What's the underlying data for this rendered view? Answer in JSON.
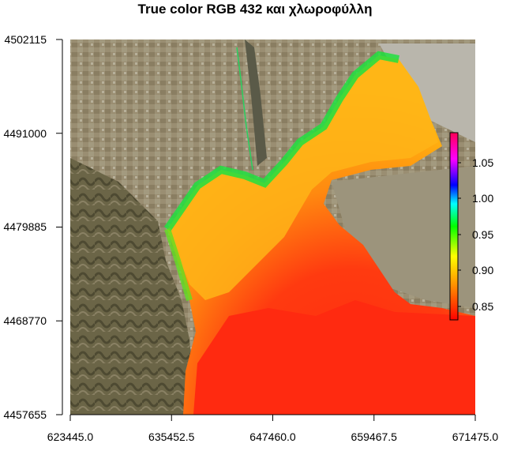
{
  "title": "True color RGB 432 και χλωροφύλλη",
  "map": {
    "x_ticks": [
      "623445.0",
      "635452.5",
      "647460.0",
      "659467.5",
      "671475.0"
    ],
    "y_ticks": [
      "4502115",
      "4491000",
      "4479885",
      "4468770",
      "4457655"
    ],
    "x_range": [
      623445.0,
      671475.0
    ],
    "y_range": [
      4457655,
      4502115
    ]
  },
  "colorbar": {
    "labels": [
      "1.05",
      "1.00",
      "0.95",
      "0.90",
      "0.85"
    ],
    "values": [
      1.05,
      1.0,
      0.95,
      0.9,
      0.85
    ],
    "range": [
      0.83,
      1.09
    ],
    "colors": [
      "#ff0000",
      "#ff8c00",
      "#ffff00",
      "#00ff00",
      "#00ffff",
      "#0000ff",
      "#ff00ff",
      "#ff0066"
    ]
  },
  "colors": {
    "land": "#8e8268",
    "land_dark": "#5e5a40",
    "water_red": "#ff2a10",
    "water_orange": "#ff7a10",
    "water_yellow": "#ffc010",
    "coast_green": "#20e040"
  }
}
